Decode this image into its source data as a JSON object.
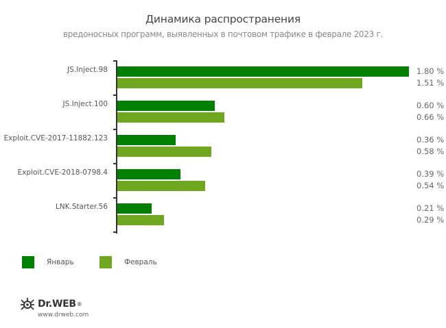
{
  "chart_data": {
    "type": "bar",
    "orientation": "horizontal",
    "title": "Динамика распространения",
    "subtitle": "вредоносных программ, выявленных в почтовом трафике в феврале 2023 г.",
    "categories": [
      "JS.Inject.98",
      "JS.Inject.100",
      "Exploit.CVE-2017-11882.123",
      "Exploit.CVE-2018-0798.4",
      "LNK.Starter.56"
    ],
    "series": [
      {
        "name": "Январь",
        "color": "#008000",
        "values": [
          1.8,
          0.6,
          0.36,
          0.39,
          0.21
        ]
      },
      {
        "name": "Февраль",
        "color": "#6fa81e",
        "values": [
          1.51,
          0.66,
          0.58,
          0.54,
          0.29
        ]
      }
    ],
    "value_labels": {
      "jan": [
        "1.80 %",
        "0.60 %",
        "0.36 %",
        "0.39 %",
        "0.21 %"
      ],
      "feb": [
        "1.51 %",
        "0.66 %",
        "0.58 %",
        "0.54 %",
        "0.29 %"
      ]
    },
    "xlabel": "",
    "ylabel": "",
    "unit": "%",
    "grid": false,
    "legend_position": "bottom-left"
  },
  "legend": {
    "jan": "Январь",
    "feb": "Февраль"
  },
  "branding": {
    "logo_text": "Dr.WEB",
    "logo_reg": "®",
    "url": "www.drweb.com"
  }
}
